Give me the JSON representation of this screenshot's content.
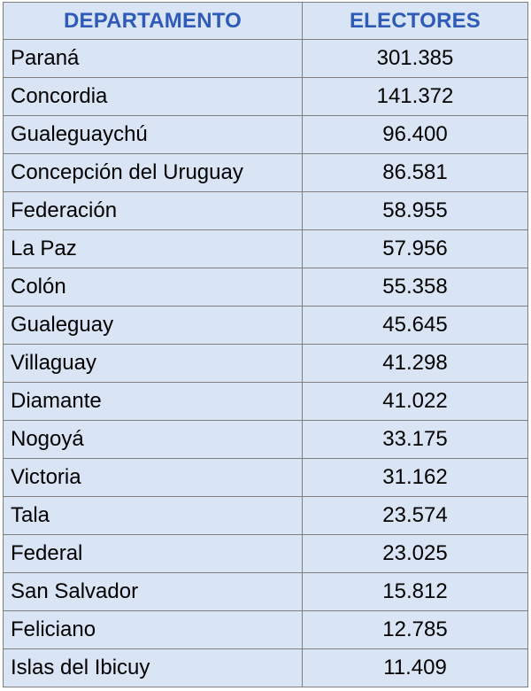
{
  "table": {
    "headers": {
      "departamento": "DEPARTAMENTO",
      "electores": "ELECTORES"
    },
    "rows": [
      {
        "departamento": "Paraná",
        "electores": "301.385"
      },
      {
        "departamento": "Concordia",
        "electores": "141.372"
      },
      {
        "departamento": "Gualeguaychú",
        "electores": "96.400"
      },
      {
        "departamento": "Concepción del Uruguay",
        "electores": "86.581"
      },
      {
        "departamento": "Federación",
        "electores": "58.955"
      },
      {
        "departamento": "La Paz",
        "electores": "57.956"
      },
      {
        "departamento": "Colón",
        "electores": "55.358"
      },
      {
        "departamento": "Gualeguay",
        "electores": "45.645"
      },
      {
        "departamento": "Villaguay",
        "electores": "41.298"
      },
      {
        "departamento": "Diamante",
        "electores": "41.022"
      },
      {
        "departamento": "Nogoyá",
        "electores": "33.175"
      },
      {
        "departamento": "Victoria",
        "electores": "31.162"
      },
      {
        "departamento": "Tala",
        "electores": "23.574"
      },
      {
        "departamento": "Federal",
        "electores": "23.025"
      },
      {
        "departamento": "San Salvador",
        "electores": "15.812"
      },
      {
        "departamento": "Feliciano",
        "electores": "12.785"
      },
      {
        "departamento": "Islas del Ibicuy",
        "electores": "11.409"
      }
    ]
  },
  "colors": {
    "header_text": "#2f5bb8",
    "cell_background": "#d9e4f4",
    "border": "#7f7f7f"
  }
}
